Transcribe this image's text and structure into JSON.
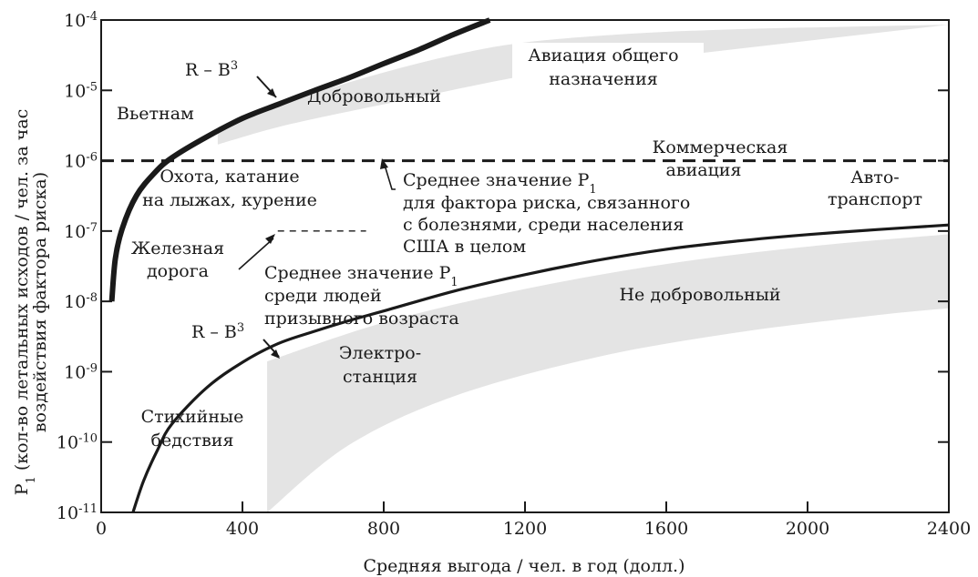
{
  "chart_data": {
    "type": "line",
    "xlabel": "Средняя выгода / чел. в год (долл.)",
    "ylabel_line1": "P",
    "ylabel_sub": "1",
    "ylabel_line1_rest": " (кол-во летальных исходов / чел. за час",
    "ylabel_line2": "воздействия фактора риска)",
    "x_axis": {
      "min": 0,
      "max": 2400,
      "ticks": [
        0,
        400,
        800,
        1200,
        1600,
        2000,
        2400
      ],
      "tick_labels": [
        "0",
        "400",
        "800",
        "1200",
        "1600",
        "2000",
        "2400"
      ]
    },
    "y_axis": {
      "scale": "log",
      "min_exp": -11,
      "max_exp": -4,
      "ticks": [
        -11,
        -10,
        -9,
        -8,
        -7,
        -6,
        -5,
        -4
      ],
      "tick_base": "10",
      "tick_exps": [
        "-11",
        "-10",
        "-9",
        "-8",
        "-7",
        "-6",
        "-5",
        "-4"
      ]
    },
    "series": [
      {
        "id": "voluntary",
        "x": [
          30,
          40,
          60,
          100,
          150,
          200,
          300,
          400,
          500,
          600,
          700,
          800,
          900,
          1000,
          1100
        ],
        "y": [
          1e-08,
          4e-08,
          1.1e-07,
          3.2e-07,
          6.6e-07,
          1.1e-06,
          2.2e-06,
          4e-06,
          6.3e-06,
          9.8e-06,
          1.5e-05,
          2.4e-05,
          3.8e-05,
          6.3e-05,
          0.0001
        ]
      },
      {
        "id": "involuntary",
        "x": [
          90,
          120,
          160,
          200,
          300,
          400,
          500,
          600,
          700,
          800,
          1000,
          1200,
          1400,
          1600,
          1800,
          2000,
          2200,
          2400
        ],
        "y": [
          1e-11,
          2.8e-11,
          7.8e-11,
          1.8e-10,
          6e-10,
          1.36e-09,
          2.5e-09,
          3.7e-09,
          5.3e-09,
          7.3e-09,
          1.4e-08,
          2.4e-08,
          3.8e-08,
          5.5e-08,
          7.2e-08,
          8.9e-08,
          1.05e-07,
          1.22e-07
        ]
      }
    ],
    "reference_lines": [
      {
        "id": "disease-average",
        "y": 1e-06,
        "x_from": 0,
        "x_to": 2400,
        "style": "dashed-heavy"
      },
      {
        "id": "draft-age-average",
        "y": 1e-07,
        "x_from": 500,
        "x_to": 750,
        "style": "dashed-light"
      }
    ],
    "bands": [
      {
        "id": "voluntary-band",
        "upper": {
          "x": [
            330,
            600,
            800,
            1000,
            1200,
            1500,
            1800,
            2100,
            2400
          ],
          "y": [
            3e-06,
            9e-06,
            1.8e-05,
            3.2e-05,
            4.8e-05,
            6.4e-05,
            7.4e-05,
            8e-05,
            8.6e-05
          ]
        },
        "lower": {
          "x": [
            330,
            500,
            700,
            900,
            1100,
            1300
          ],
          "y": [
            1.7e-06,
            3e-06,
            5e-06,
            8e-06,
            1.3e-05,
            2e-05
          ]
        }
      },
      {
        "id": "involuntary-band",
        "upper": {
          "x": [
            470,
            800,
            1200,
            1600,
            2000,
            2400
          ],
          "y": [
            1.4e-09,
            5e-09,
            1.5e-08,
            3.4e-08,
            6e-08,
            9e-08
          ]
        },
        "lower": {
          "x": [
            470,
            700,
            1000,
            1400,
            1800,
            2200,
            2400
          ],
          "y": [
            1e-11,
            9e-11,
            4.5e-10,
            1.6e-09,
            3.6e-09,
            6.4e-09,
            8e-09
          ]
        }
      }
    ],
    "annotations": {
      "rb3_top": "R – B",
      "rb3_top_sup": "3",
      "rb3_bottom": "R – B",
      "rb3_bottom_sup": "3",
      "voluntary": "Добровольный",
      "involuntary": "Не добровольный",
      "vietnam": "Вьетнам",
      "general_aviation_1": "Авиация общего",
      "general_aviation_2": "назначения",
      "commercial_aviation_1": "Коммерческая",
      "commercial_aviation_2": "авиация",
      "motor_transport_1": "Авто-",
      "motor_transport_2": "транспорт",
      "hunting_1": "Охота, катание",
      "hunting_2": "на лыжах, курение",
      "railroad_1": "Железная",
      "railroad_2": "дорога",
      "disease_avg_1": "Среднее значение P",
      "disease_avg_1_sub": "1",
      "disease_avg_2": "для фактора риска, связанного",
      "disease_avg_3": "с болезнями, среди населения",
      "disease_avg_4": "США в целом",
      "draft_avg_1": "Среднее значение P",
      "draft_avg_1_sub": "1",
      "draft_avg_2": "среди людей",
      "draft_avg_3": "призывного возраста",
      "power_plant_1": "Электро-",
      "power_plant_2": "станция",
      "natural_disasters_1": "Стихийные",
      "natural_disasters_2": "бедствия"
    }
  }
}
